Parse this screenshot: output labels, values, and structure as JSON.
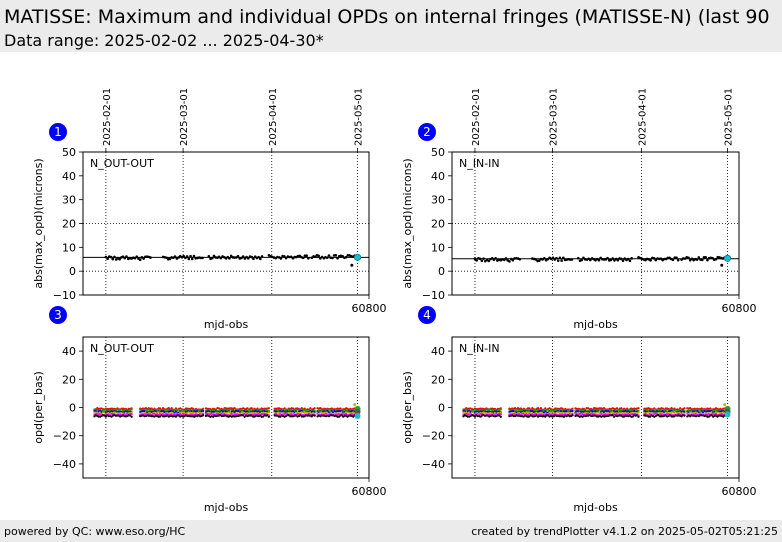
{
  "header": {
    "title": "MATISSE: Maximum and individual OPDs on internal fringes (MATISSE-N) (last 90",
    "subtitle": "Data range: 2025-02-02 ... 2025-04-30*"
  },
  "footer": {
    "left": "powered by QC: www.eso.org/HC",
    "right": "created by trendPlotter v4.1.2 on 2025-05-02T05:21:25"
  },
  "colors": {
    "points": "#000000",
    "latest": "#17becf",
    "badge": "#0000ff",
    "header_bg": "#ebebeb",
    "baselines": [
      "#ff0000",
      "#00aa00",
      "#0000ff",
      "#d4b000",
      "#ff00ff",
      "#000000"
    ]
  },
  "chart_data": [
    {
      "id": "1",
      "type": "scatter",
      "label": "N_OUT-OUT",
      "xlabel": "mjd-obs",
      "ylabel": "abs(max_opd)(microns)",
      "xlim": [
        60700,
        60800
      ],
      "ylim": [
        -10,
        50
      ],
      "yticks": [
        -10,
        0,
        10,
        20,
        30,
        40,
        50
      ],
      "xticks": [
        60800
      ],
      "ref_line": 5.8,
      "dotted_hlines": [
        0,
        20
      ],
      "date_ticks": [
        {
          "mjd": 60708,
          "label": "2025-02-01"
        },
        {
          "mjd": 60735,
          "label": "2025-03-01"
        },
        {
          "mjd": 60766,
          "label": "2025-04-01"
        },
        {
          "mjd": 60796,
          "label": "2025-05-01"
        }
      ],
      "grid": "dotted at date ticks",
      "segments": [
        [
          60708,
          60724,
          5.5
        ],
        [
          60728,
          60742,
          5.7
        ],
        [
          60744,
          60763,
          5.8
        ],
        [
          60765,
          60779,
          6.0
        ],
        [
          60780,
          60795,
          6.0
        ]
      ],
      "outliers": [
        {
          "x": 60794,
          "y": 2.5
        }
      ],
      "latest": {
        "x": 60796,
        "y": 5.8
      }
    },
    {
      "id": "2",
      "type": "scatter",
      "label": "N_IN-IN",
      "xlabel": "mjd-obs",
      "ylabel": "abs(max_opd)(microns)",
      "xlim": [
        60700,
        60800
      ],
      "ylim": [
        -10,
        50
      ],
      "yticks": [
        -10,
        0,
        10,
        20,
        30,
        40,
        50
      ],
      "xticks": [
        60800
      ],
      "ref_line": 5.2,
      "dotted_hlines": [
        0,
        20
      ],
      "date_ticks": [
        {
          "mjd": 60708,
          "label": "2025-02-01"
        },
        {
          "mjd": 60735,
          "label": "2025-03-01"
        },
        {
          "mjd": 60766,
          "label": "2025-04-01"
        },
        {
          "mjd": 60796,
          "label": "2025-05-01"
        }
      ],
      "grid": "dotted at date ticks",
      "segments": [
        [
          60708,
          60724,
          4.8
        ],
        [
          60728,
          60742,
          5.0
        ],
        [
          60744,
          60763,
          5.0
        ],
        [
          60765,
          60779,
          5.2
        ],
        [
          60780,
          60795,
          5.2
        ]
      ],
      "outliers": [
        {
          "x": 60794,
          "y": 2.5
        }
      ],
      "latest": {
        "x": 60796,
        "y": 5.4
      }
    },
    {
      "id": "3",
      "type": "scatter",
      "label": "N_OUT-OUT",
      "xlabel": "mjd-obs",
      "ylabel": "opd(per_bas)",
      "xlim": [
        60700,
        60800
      ],
      "ylim": [
        -50,
        50
      ],
      "yticks": [
        -40,
        -20,
        0,
        20,
        40
      ],
      "xticks": [
        60800
      ],
      "date_ticks": [
        {
          "mjd": 60708,
          "label": "2025-02-01"
        },
        {
          "mjd": 60735,
          "label": "2025-03-01"
        },
        {
          "mjd": 60766,
          "label": "2025-04-01"
        },
        {
          "mjd": 60796,
          "label": "2025-05-01"
        }
      ],
      "grid": "dotted at date ticks",
      "segments": [
        [
          60704,
          60717
        ],
        [
          60720,
          60742
        ],
        [
          60743,
          60765
        ],
        [
          60767,
          60781
        ],
        [
          60782,
          60795
        ]
      ],
      "series_levels": [
        -1,
        -2,
        -3,
        -4,
        -5,
        -6
      ],
      "latest_levels": [
        -1,
        -3,
        -6
      ],
      "outliers": [
        {
          "x": 60795,
          "y": 2
        }
      ]
    },
    {
      "id": "4",
      "type": "scatter",
      "label": "N_IN-IN",
      "xlabel": "mjd-obs",
      "ylabel": "opd(per_bas)",
      "xlim": [
        60700,
        60800
      ],
      "ylim": [
        -50,
        50
      ],
      "yticks": [
        -40,
        -20,
        0,
        20,
        40
      ],
      "xticks": [
        60800
      ],
      "date_ticks": [
        {
          "mjd": 60708,
          "label": "2025-02-01"
        },
        {
          "mjd": 60735,
          "label": "2025-03-01"
        },
        {
          "mjd": 60766,
          "label": "2025-04-01"
        },
        {
          "mjd": 60796,
          "label": "2025-05-01"
        }
      ],
      "grid": "dotted at date ticks",
      "segments": [
        [
          60704,
          60717
        ],
        [
          60720,
          60742
        ],
        [
          60743,
          60765
        ],
        [
          60767,
          60781
        ],
        [
          60782,
          60795
        ]
      ],
      "series_levels": [
        -1,
        -2,
        -3,
        -4,
        -5,
        -6
      ],
      "latest_levels": [
        -1,
        -3,
        -5
      ],
      "outliers": [
        {
          "x": 60795,
          "y": 2
        }
      ]
    }
  ]
}
